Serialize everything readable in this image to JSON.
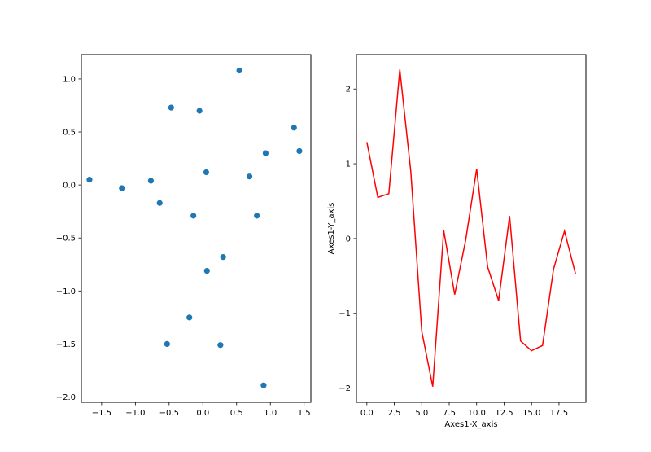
{
  "chart_data": [
    {
      "type": "scatter",
      "title": "",
      "xlabel": "",
      "ylabel": "",
      "xlim": [
        -1.8,
        1.6
      ],
      "ylim": [
        -2.05,
        1.23
      ],
      "xticks": [
        -1.5,
        -1.0,
        -0.5,
        0.0,
        0.5,
        1.0,
        1.5
      ],
      "xtick_labels": [
        "−1.5",
        "−1.0",
        "−0.5",
        "0.0",
        "0.5",
        "1.0",
        "1.5"
      ],
      "yticks": [
        -2.0,
        -1.5,
        -1.0,
        -0.5,
        0.0,
        0.5,
        1.0
      ],
      "ytick_labels": [
        "−2.0",
        "−1.5",
        "−1.0",
        "−0.5",
        "0.0",
        "0.5",
        "1.0"
      ],
      "grid": false,
      "color": "#1f77b4",
      "points": [
        {
          "x": -1.68,
          "y": 0.05
        },
        {
          "x": -1.2,
          "y": -0.03
        },
        {
          "x": -0.77,
          "y": 0.04
        },
        {
          "x": -0.64,
          "y": -0.17
        },
        {
          "x": -0.47,
          "y": 0.73
        },
        {
          "x": -0.05,
          "y": 0.7
        },
        {
          "x": 0.54,
          "y": 1.08
        },
        {
          "x": 1.35,
          "y": 0.54
        },
        {
          "x": 1.43,
          "y": 0.32
        },
        {
          "x": 0.93,
          "y": 0.3
        },
        {
          "x": 0.05,
          "y": 0.12
        },
        {
          "x": 0.69,
          "y": 0.08
        },
        {
          "x": 0.8,
          "y": -0.29
        },
        {
          "x": -0.14,
          "y": -0.29
        },
        {
          "x": 0.3,
          "y": -0.68
        },
        {
          "x": 0.06,
          "y": -0.81
        },
        {
          "x": -0.2,
          "y": -1.25
        },
        {
          "x": -0.53,
          "y": -1.5
        },
        {
          "x": 0.26,
          "y": -1.51
        },
        {
          "x": 0.9,
          "y": -1.89
        }
      ]
    },
    {
      "type": "line",
      "title": "",
      "xlabel": "Axes1-X_axis",
      "ylabel": "Axes1-Y_axis",
      "xlim": [
        -0.95,
        19.95
      ],
      "ylim": [
        -2.19,
        2.46
      ],
      "xticks": [
        0.0,
        2.5,
        5.0,
        7.5,
        10.0,
        12.5,
        15.0,
        17.5
      ],
      "xtick_labels": [
        "0.0",
        "2.5",
        "5.0",
        "7.5",
        "10.0",
        "12.5",
        "15.0",
        "17.5"
      ],
      "yticks": [
        -2,
        -1,
        0,
        1,
        2
      ],
      "ytick_labels": [
        "−2",
        "−1",
        "0",
        "1",
        "2"
      ],
      "grid": false,
      "color": "#ff0000",
      "x": [
        0,
        1,
        2,
        3,
        4,
        5,
        6,
        7,
        8,
        9,
        10,
        11,
        12,
        13,
        14,
        15,
        16,
        17,
        18,
        19
      ],
      "y": [
        1.29,
        0.55,
        0.6,
        2.26,
        0.9,
        -1.24,
        -1.98,
        0.11,
        -0.75,
        -0.02,
        0.93,
        -0.38,
        -0.83,
        0.3,
        -1.37,
        -1.5,
        -1.43,
        -0.41,
        0.1,
        -0.47
      ]
    }
  ]
}
